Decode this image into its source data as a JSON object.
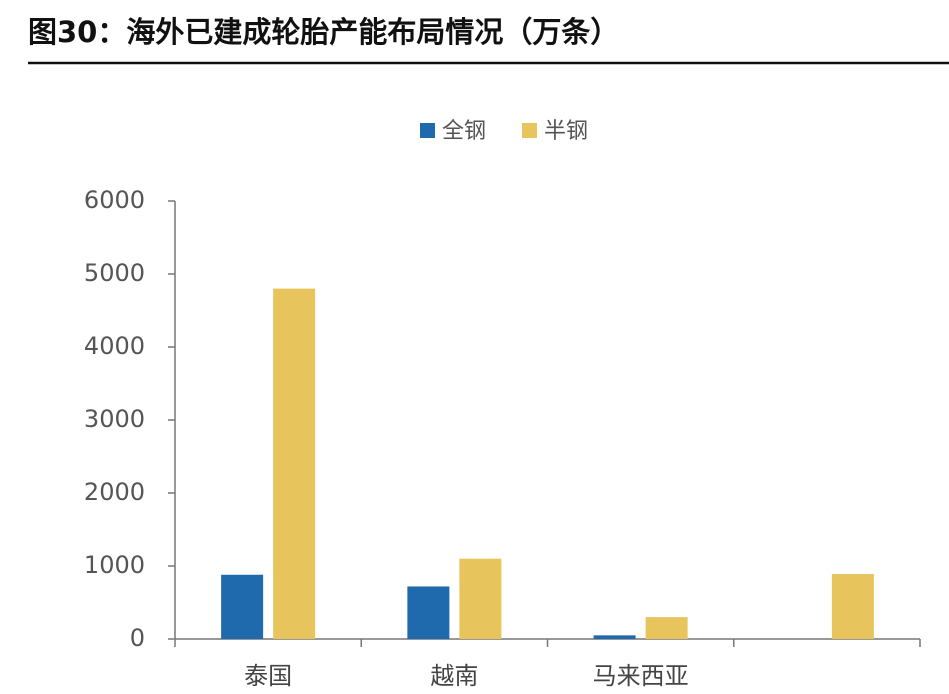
{
  "chart_data": {
    "type": "bar",
    "title": "图30：海外已建成轮胎产能布局情况（万条）",
    "categories": [
      "泰国",
      "越南",
      "马来西亚",
      null
    ],
    "series": [
      {
        "name": "全钢",
        "color": "#1f6aad",
        "values": [
          880,
          720,
          50,
          null
        ]
      },
      {
        "name": "半钢",
        "color": "#e8c45c",
        "values": [
          4800,
          1100,
          300,
          890
        ]
      }
    ],
    "ylim": [
      0,
      6000
    ],
    "yticks": [
      0,
      1000,
      2000,
      3000,
      4000,
      5000,
      6000
    ],
    "grid": false,
    "legend": "top"
  }
}
